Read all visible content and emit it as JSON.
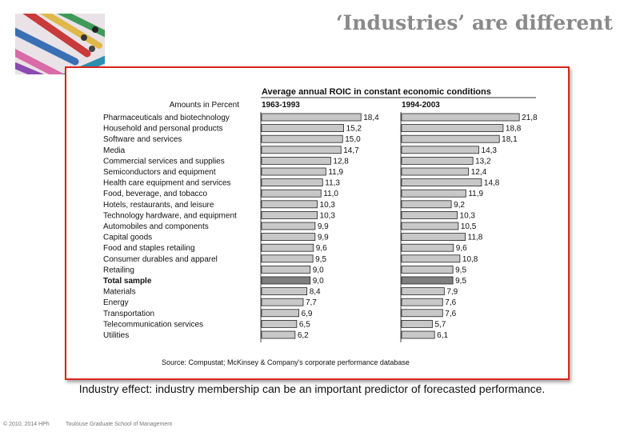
{
  "slide": {
    "title": "‘Industries’ are different",
    "note": "Industry effect: industry membership can be an important predictor of forecasted performance.",
    "copyright": "© 2010, 2014 HPh",
    "school": "Toulouse Graduate School of Management"
  },
  "photo": {
    "description_icon": "colored-pencils-photo"
  },
  "colors": {
    "bar": "#c8c8c8",
    "highlight_bar": "#7f7f7f",
    "frame_border": "#d9261c",
    "title_text": "#8a8a8a"
  },
  "chart_data": {
    "type": "bar",
    "orientation": "horizontal",
    "title": "Average annual ROIC in constant economic conditions",
    "units_label": "Amounts in Percent",
    "source": "Source: Compustat; McKinsey & Company's corporate performance database",
    "highlight_category": "Total sample",
    "categories": [
      "Pharmaceuticals and biotechnology",
      "Household and personal products",
      "Software and services",
      "Media",
      "Commercial services and supplies",
      "Semiconductors and equipment",
      "Health care equipment and services",
      "Food, beverage, and tobacco",
      "Hotels, restaurants, and leisure",
      "Technology hardware, and equipment",
      "Automobiles and components",
      "Capital goods",
      "Food and staples retailing",
      "Consumer durables and apparel",
      "Retailing",
      "Total sample",
      "Materials",
      "Energy",
      "Transportation",
      "Telecommunication services",
      "Utilities"
    ],
    "series": [
      {
        "name": "1963-1993",
        "values": [
          18.4,
          15.2,
          15.0,
          14.7,
          12.8,
          11.9,
          11.3,
          11.0,
          10.3,
          10.3,
          9.9,
          9.9,
          9.6,
          9.5,
          9.0,
          9.0,
          8.4,
          7.7,
          6.9,
          6.5,
          6.2
        ],
        "labels": [
          "18,4",
          "15,2",
          "15,0",
          "14,7",
          "12,8",
          "11,9",
          "11,3",
          "11,0",
          "10,3",
          "10,3",
          "9,9",
          "9,9",
          "9,6",
          "9,5",
          "9,0",
          "9,0",
          "8,4",
          "7,7",
          "6,9",
          "6,5",
          "6,2"
        ]
      },
      {
        "name": "1994-2003",
        "values": [
          21.8,
          18.8,
          18.1,
          14.3,
          13.2,
          12.4,
          14.8,
          11.9,
          9.2,
          10.3,
          10.5,
          11.8,
          9.6,
          10.8,
          9.5,
          9.5,
          7.9,
          7.6,
          7.6,
          5.7,
          6.1
        ],
        "labels": [
          "21,8",
          "18,8",
          "18,1",
          "14,3",
          "13,2",
          "12,4",
          "14,8",
          "11,9",
          "9,2",
          "10,3",
          "10,5",
          "11,8",
          "9,6",
          "10,8",
          "9,5",
          "9,5",
          "7,9",
          "7,6",
          "7,6",
          "5,7",
          "6,1"
        ]
      }
    ]
  }
}
